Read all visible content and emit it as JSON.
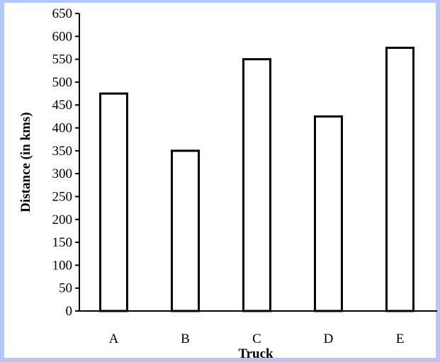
{
  "chart_data": {
    "type": "bar",
    "categories": [
      "A",
      "B",
      "C",
      "D",
      "E"
    ],
    "values": [
      475,
      350,
      550,
      425,
      575
    ],
    "xlabel": "Truck",
    "ylabel": "Distance (in kms)",
    "ylim": [
      0,
      650
    ],
    "yticks": [
      0,
      50,
      100,
      150,
      200,
      250,
      300,
      350,
      400,
      450,
      500,
      550,
      600,
      650
    ],
    "grid": false,
    "legend": "none",
    "colors": {
      "bar_fill": "#ffffff",
      "bar_stroke": "#000000",
      "frame": "#b3c6ff"
    }
  }
}
